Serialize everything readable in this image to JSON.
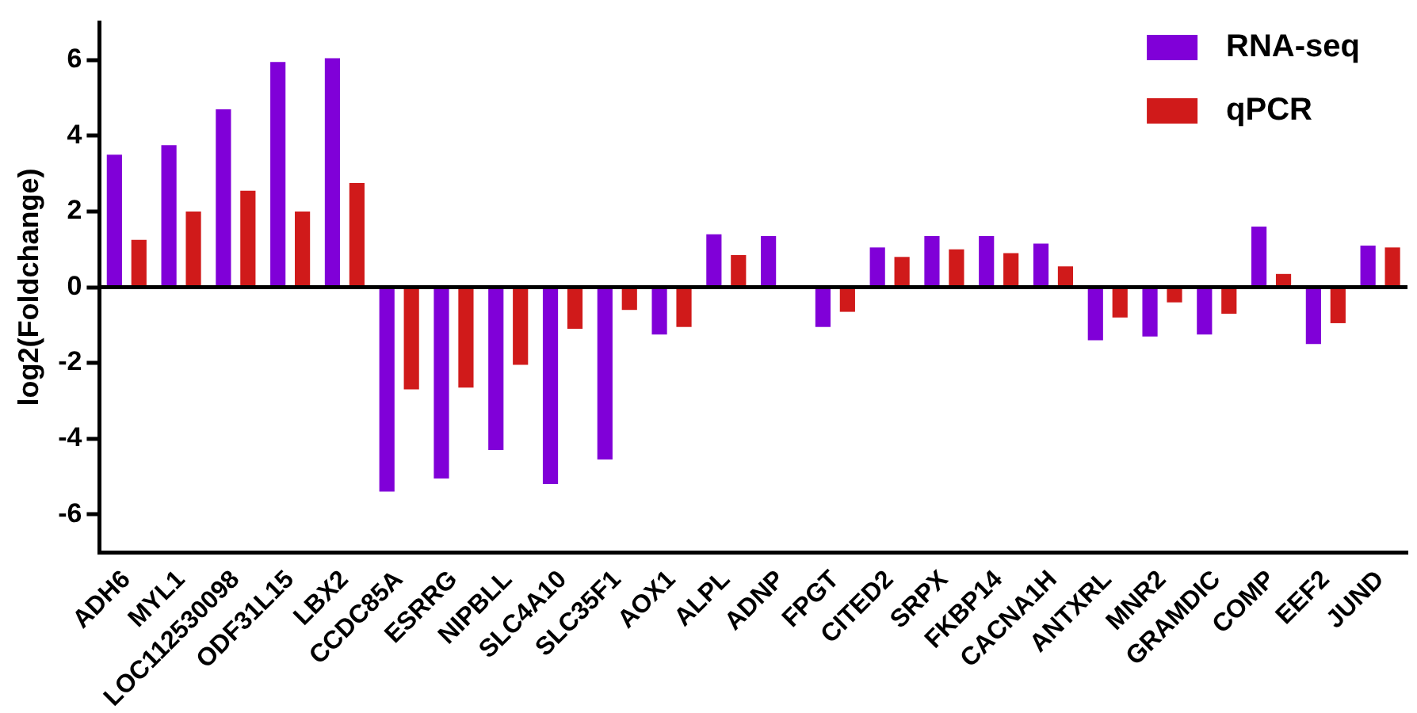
{
  "chart_data": {
    "type": "bar",
    "ylabel": "log2(Foldchange)",
    "categories": [
      "ADH6",
      "MYL1",
      "LOC112530098",
      "ODF31L15",
      "LBX2",
      "CCDC85A",
      "ESRRG",
      "NIPBLL",
      "SLC4A10",
      "SLC35F1",
      "AOX1",
      "ALPL",
      "ADNP",
      "FPGT",
      "CITED2",
      "SRPX",
      "FKBP14",
      "CACNA1H",
      "ANTXRL",
      "MNR2",
      "GRAMDIC",
      "COMP",
      "EEF2",
      "JUND"
    ],
    "series": [
      {
        "name": "RNA-seq",
        "color": "#8000d8",
        "values": [
          3.5,
          3.75,
          4.7,
          5.95,
          6.05,
          -5.4,
          -5.05,
          -4.3,
          -5.2,
          -4.55,
          -1.25,
          1.4,
          1.35,
          -1.05,
          1.05,
          1.35,
          1.35,
          1.15,
          -1.4,
          -1.3,
          -1.25,
          1.6,
          -1.5,
          1.1
        ]
      },
      {
        "name": "qPCR",
        "color": "#d01a1a",
        "values": [
          1.25,
          2.0,
          2.55,
          2.0,
          2.75,
          -2.7,
          -2.65,
          -2.05,
          -1.1,
          -0.6,
          -1.05,
          0.85,
          null,
          -0.65,
          0.8,
          1.0,
          0.9,
          0.55,
          -0.8,
          -0.4,
          -0.7,
          0.35,
          -0.95,
          1.05
        ]
      }
    ],
    "ylim": [
      -7,
      7
    ],
    "yticks": [
      -6,
      -4,
      -2,
      0,
      2,
      4,
      6
    ],
    "grid": false,
    "legend": "top right",
    "ref_lines": [
      {
        "axis": "y",
        "value": 0,
        "color": "#000000"
      }
    ]
  }
}
